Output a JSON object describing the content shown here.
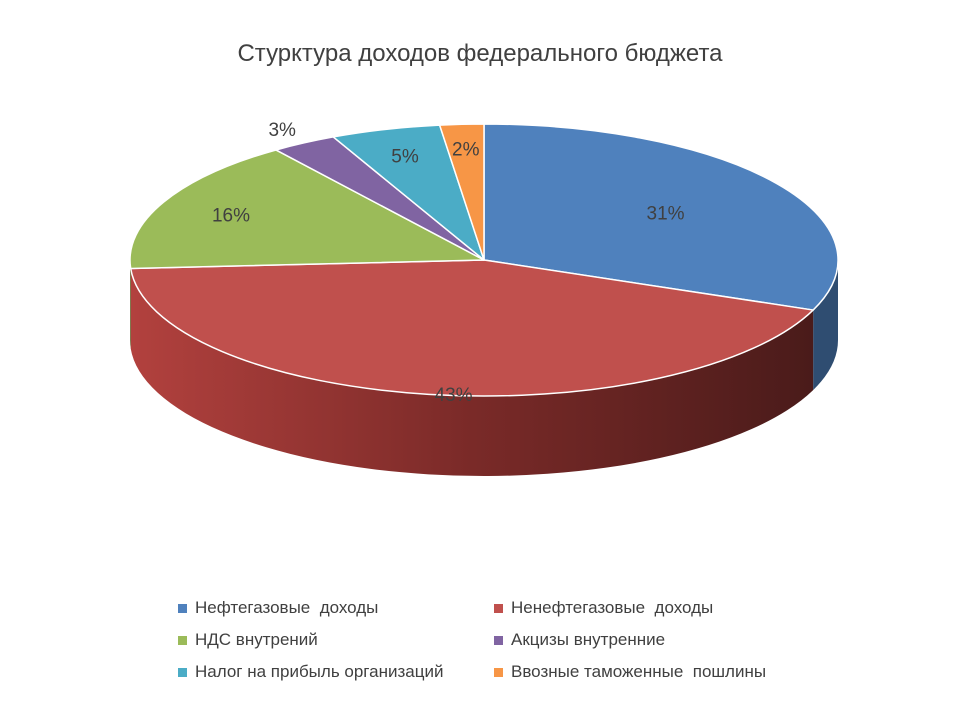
{
  "chart_data": {
    "type": "pie",
    "title": "Стурктура доходов федерального бюджета",
    "legend_position": "bottom",
    "slices": [
      {
        "name": "Нефтегазовые  доходы",
        "value": 31,
        "label": "31%",
        "color": "#4F81BD"
      },
      {
        "name": "Ненефтегазовые  доходы",
        "value": 43,
        "label": "43%",
        "color": "#C0504D"
      },
      {
        "name": "НДС внутрений",
        "value": 16,
        "label": "16%",
        "color": "#9BBB59"
      },
      {
        "name": "Акцизы внутренние",
        "value": 3,
        "label": "3%",
        "color": "#8064A2"
      },
      {
        "name": "Налог на прибыль организаций",
        "value": 5,
        "label": "5%",
        "color": "#4BACC6"
      },
      {
        "name": "Ввозные таможенные  пошлины",
        "value": 2,
        "label": "2%",
        "color": "#F79646"
      }
    ]
  }
}
